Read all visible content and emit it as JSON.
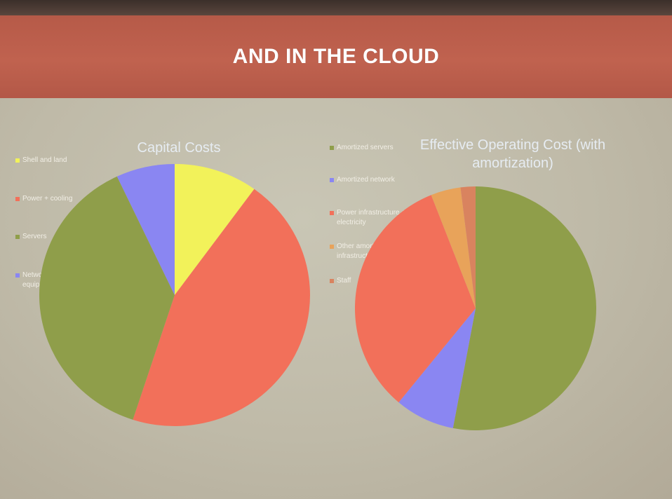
{
  "slide": {
    "title": "AND IN THE CLOUD"
  },
  "colors": {
    "banner": "#c0624f",
    "background": "#bfbaa8",
    "yellow": "#f2f25a",
    "red": "#f2705a",
    "green": "#8f9e4a",
    "blue": "#8a86f2",
    "orange": "#e8a35a",
    "dark_orange": "#d9835f"
  },
  "chart_data": [
    {
      "type": "pie",
      "title": "Capital Costs",
      "legend_position": "left",
      "slices": [
        {
          "label": "Shell and land",
          "value": 10,
          "color": "#f2f25a"
        },
        {
          "label": "Power + cooling",
          "value": 45,
          "color": "#f2705a"
        },
        {
          "label": "Servers",
          "value": 38,
          "color": "#8f9e4a"
        },
        {
          "label": "Networking equipment",
          "value": 7,
          "color": "#8a86f2"
        }
      ]
    },
    {
      "type": "pie",
      "title": "Effective Operating Cost (with amortization)",
      "legend_position": "left",
      "slices": [
        {
          "label": "Amortized servers",
          "value": 53,
          "color": "#8f9e4a"
        },
        {
          "label": "Amortized network",
          "value": 8,
          "color": "#8a86f2"
        },
        {
          "label": "Power infrastructure + electricity",
          "value": 33,
          "color": "#f2705a"
        },
        {
          "label": "Other amortized infrastructure",
          "value": 4,
          "color": "#e8a35a"
        },
        {
          "label": "Staff",
          "value": 2,
          "color": "#d9835f"
        }
      ]
    }
  ]
}
